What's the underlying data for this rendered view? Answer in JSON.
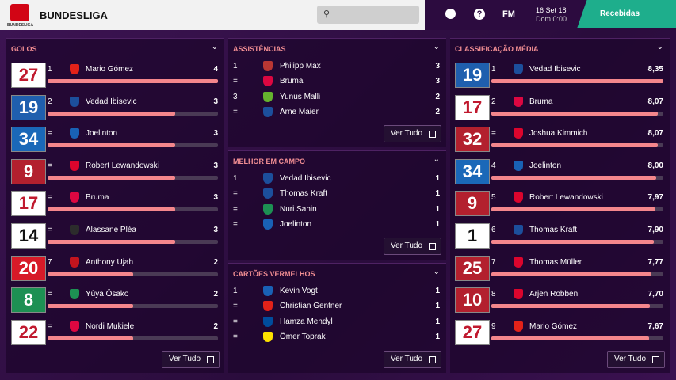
{
  "header": {
    "logo_text": "BUNDESLIGA",
    "title": "BUNDESLIGA",
    "fm": "FM",
    "date": "16 Set 18",
    "time": "Dom 0:00",
    "button": "Recebidas"
  },
  "panels": [
    {
      "title": "GOLOS",
      "bars": true,
      "button": "Ver Tudo",
      "rows": [
        {
          "shirt": "27",
          "kit": "#ffffff",
          "ink": "#c0192e",
          "rank": "1",
          "crest": "#e32219",
          "player": "Mario Gómez",
          "value": 4
        },
        {
          "shirt": "19",
          "kit": "#1f5fae",
          "ink": "#ffffff",
          "rank": "2",
          "crest": "#1c4f9c",
          "player": "Vedad Ibisevic",
          "value": 3
        },
        {
          "shirt": "34",
          "kit": "#1a68b8",
          "ink": "#ffffff",
          "rank": "=",
          "crest": "#1961b5",
          "player": "Joelinton",
          "value": 3
        },
        {
          "shirt": "9",
          "kit": "#b3202e",
          "ink": "#ffffff",
          "rank": "=",
          "crest": "#dc052d",
          "player": "Robert Lewandowski",
          "value": 3
        },
        {
          "shirt": "17",
          "kit": "#ffffff",
          "ink": "#c0192e",
          "rank": "=",
          "crest": "#dd0741",
          "player": "Bruma",
          "value": 3
        },
        {
          "shirt": "14",
          "kit": "#ffffff",
          "ink": "#111111",
          "rank": "=",
          "crest": "#2c2c2c",
          "player": "Alassane Pléa",
          "value": 3
        },
        {
          "shirt": "20",
          "kit": "#d71a28",
          "ink": "#ffffff",
          "rank": "7",
          "crest": "#c3141e",
          "player": "Anthony Ujah",
          "value": 2
        },
        {
          "shirt": "8",
          "kit": "#1d9053",
          "ink": "#ffffff",
          "rank": "=",
          "crest": "#1d9053",
          "player": "Yûya Ôsako",
          "value": 2
        },
        {
          "shirt": "22",
          "kit": "#ffffff",
          "ink": "#c0192e",
          "rank": "=",
          "crest": "#dd0741",
          "player": "Nordi Mukiele",
          "value": 2
        }
      ]
    },
    {
      "title": "ASSISTÊNCIAS",
      "bars": false,
      "button": "Ver Tudo",
      "rows": [
        {
          "rank": "1",
          "crest": "#ba3733",
          "player": "Philipp Max",
          "value": 3
        },
        {
          "rank": "=",
          "crest": "#dd0741",
          "player": "Bruma",
          "value": 3
        },
        {
          "rank": "3",
          "crest": "#65b32e",
          "player": "Yunus Malli",
          "value": 2
        },
        {
          "rank": "=",
          "crest": "#1c4f9c",
          "player": "Arne Maier",
          "value": 2
        }
      ]
    },
    {
      "title": "MELHOR EM CAMPO",
      "bars": false,
      "button": "Ver Tudo",
      "rows": [
        {
          "rank": "1",
          "crest": "#1c4f9c",
          "player": "Vedad Ibisevic",
          "value": 1
        },
        {
          "rank": "=",
          "crest": "#1c4f9c",
          "player": "Thomas Kraft",
          "value": 1
        },
        {
          "rank": "=",
          "crest": "#1d9053",
          "player": "Nuri Sahin",
          "value": 1
        },
        {
          "rank": "=",
          "crest": "#1961b5",
          "player": "Joelinton",
          "value": 1
        }
      ]
    },
    {
      "title": "CARTÕES VERMELHOS",
      "bars": false,
      "button": "Ver Tudo",
      "rows": [
        {
          "rank": "1",
          "crest": "#1961b5",
          "player": "Kevin Vogt",
          "value": 1
        },
        {
          "rank": "=",
          "crest": "#e32219",
          "player": "Christian Gentner",
          "value": 1
        },
        {
          "rank": "=",
          "crest": "#004d9d",
          "player": "Hamza Mendyl",
          "value": 1
        },
        {
          "rank": "=",
          "crest": "#fde100",
          "player": "Ömer Toprak",
          "value": 1
        }
      ]
    },
    {
      "title": "CLASSIFICAÇÃO MÉDIA",
      "bars": true,
      "button": "Ver Tudo",
      "rows": [
        {
          "shirt": "19",
          "kit": "#1f5fae",
          "ink": "#ffffff",
          "rank": "1",
          "crest": "#1c4f9c",
          "player": "Vedad Ibisevic",
          "value": {
            "value": 8.35,
            "label": "8,35"
          }
        },
        {
          "shirt": "17",
          "kit": "#ffffff",
          "ink": "#c0192e",
          "rank": "2",
          "crest": "#dd0741",
          "player": "Bruma",
          "value": {
            "value": 8.07,
            "label": "8,07"
          }
        },
        {
          "shirt": "32",
          "kit": "#b3202e",
          "ink": "#ffffff",
          "rank": "=",
          "crest": "#dc052d",
          "player": "Joshua Kimmich",
          "value": {
            "value": 8.07,
            "label": "8,07"
          }
        },
        {
          "shirt": "34",
          "kit": "#1a68b8",
          "ink": "#ffffff",
          "rank": "4",
          "crest": "#1961b5",
          "player": "Joelinton",
          "value": {
            "value": 8.0,
            "label": "8,00"
          }
        },
        {
          "shirt": "9",
          "kit": "#b3202e",
          "ink": "#ffffff",
          "rank": "5",
          "crest": "#dc052d",
          "player": "Robert Lewandowski",
          "value": {
            "value": 7.97,
            "label": "7,97"
          }
        },
        {
          "shirt": "1",
          "kit": "#ffffff",
          "ink": "#111111",
          "rank": "6",
          "crest": "#1c4f9c",
          "player": "Thomas Kraft",
          "value": {
            "value": 7.9,
            "label": "7,90"
          }
        },
        {
          "shirt": "25",
          "kit": "#b3202e",
          "ink": "#ffffff",
          "rank": "7",
          "crest": "#dc052d",
          "player": "Thomas Müller",
          "value": {
            "value": 7.77,
            "label": "7,77"
          }
        },
        {
          "shirt": "10",
          "kit": "#b3202e",
          "ink": "#ffffff",
          "rank": "8",
          "crest": "#dc052d",
          "player": "Arjen Robben",
          "value": {
            "value": 7.7,
            "label": "7,70"
          }
        },
        {
          "shirt": "27",
          "kit": "#ffffff",
          "ink": "#c0192e",
          "rank": "9",
          "crest": "#e32219",
          "player": "Mario Gómez",
          "value": {
            "value": 7.67,
            "label": "7,67"
          }
        }
      ]
    }
  ]
}
